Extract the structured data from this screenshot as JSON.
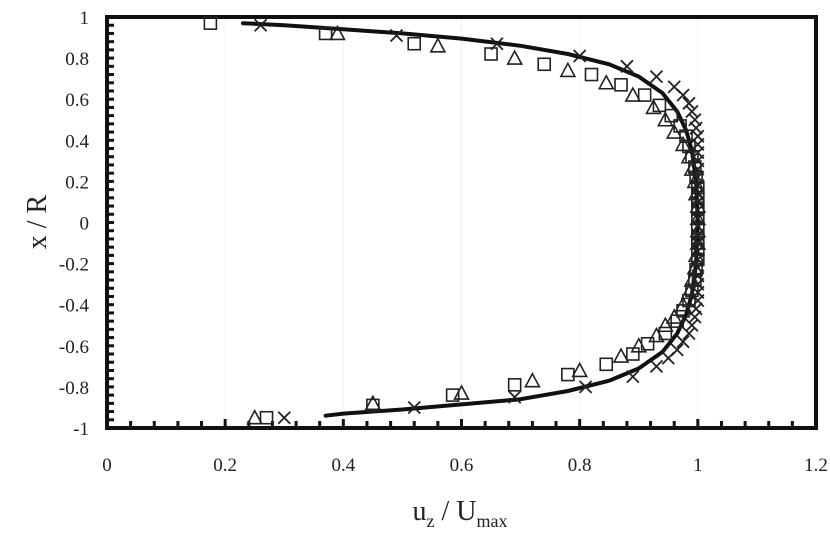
{
  "chart_data": {
    "type": "scatter",
    "title": "",
    "xlabel": "u_z / U_max",
    "xlabel_main_1": "u",
    "xlabel_sub_1": "z",
    "xlabel_main_2": " / U",
    "xlabel_sub_2": "max",
    "ylabel": "x / R",
    "xlim": [
      0,
      1.2
    ],
    "ylim": [
      -1,
      1
    ],
    "x_ticks": [
      "0",
      "0.2",
      "0.4",
      "0.6",
      "0.8",
      "1",
      "1.2"
    ],
    "y_ticks": [
      "1",
      "0.8",
      "0.6",
      "0.4",
      "0.2",
      "0",
      "-0.2",
      "-0.4",
      "-0.6",
      "-0.8",
      "-1"
    ],
    "grid": false,
    "legend": null,
    "series": [
      {
        "name": "curve",
        "style": "line",
        "color": "#111111",
        "points": [
          [
            0.23,
            0.97
          ],
          [
            0.3,
            0.96
          ],
          [
            0.4,
            0.94
          ],
          [
            0.5,
            0.92
          ],
          [
            0.6,
            0.895
          ],
          [
            0.7,
            0.86
          ],
          [
            0.78,
            0.82
          ],
          [
            0.85,
            0.77
          ],
          [
            0.9,
            0.71
          ],
          [
            0.94,
            0.63
          ],
          [
            0.965,
            0.54
          ],
          [
            0.98,
            0.45
          ],
          [
            0.99,
            0.35
          ],
          [
            0.997,
            0.2
          ],
          [
            1.0,
            0.0
          ],
          [
            0.997,
            -0.2
          ],
          [
            0.99,
            -0.35
          ],
          [
            0.98,
            -0.45
          ],
          [
            0.965,
            -0.54
          ],
          [
            0.94,
            -0.63
          ],
          [
            0.9,
            -0.71
          ],
          [
            0.85,
            -0.77
          ],
          [
            0.78,
            -0.82
          ],
          [
            0.7,
            -0.86
          ],
          [
            0.6,
            -0.885
          ],
          [
            0.5,
            -0.91
          ],
          [
            0.4,
            -0.93
          ],
          [
            0.37,
            -0.94
          ]
        ]
      },
      {
        "name": "cross",
        "style": "x",
        "color": "#222222",
        "points": [
          [
            0.26,
            0.96
          ],
          [
            0.49,
            0.91
          ],
          [
            0.66,
            0.87
          ],
          [
            0.8,
            0.81
          ],
          [
            0.88,
            0.76
          ],
          [
            0.93,
            0.71
          ],
          [
            0.96,
            0.66
          ],
          [
            0.975,
            0.62
          ],
          [
            0.985,
            0.58
          ],
          [
            0.99,
            0.54
          ],
          [
            0.995,
            0.5
          ],
          [
            0.997,
            0.46
          ],
          [
            1.0,
            0.42
          ],
          [
            1.0,
            0.38
          ],
          [
            1.0,
            0.34
          ],
          [
            1.0,
            0.3
          ],
          [
            1.0,
            0.26
          ],
          [
            1.0,
            0.22
          ],
          [
            1.0,
            0.18
          ],
          [
            1.0,
            0.14
          ],
          [
            1.0,
            0.1
          ],
          [
            1.0,
            0.06
          ],
          [
            1.0,
            0.02
          ],
          [
            1.0,
            -0.02
          ],
          [
            1.0,
            -0.06
          ],
          [
            1.0,
            -0.1
          ],
          [
            1.0,
            -0.14
          ],
          [
            1.0,
            -0.18
          ],
          [
            1.0,
            -0.22
          ],
          [
            1.0,
            -0.26
          ],
          [
            1.0,
            -0.3
          ],
          [
            1.0,
            -0.34
          ],
          [
            1.0,
            -0.38
          ],
          [
            0.997,
            -0.42
          ],
          [
            0.995,
            -0.46
          ],
          [
            0.99,
            -0.5
          ],
          [
            0.985,
            -0.54
          ],
          [
            0.975,
            -0.58
          ],
          [
            0.965,
            -0.62
          ],
          [
            0.95,
            -0.66
          ],
          [
            0.93,
            -0.7
          ],
          [
            0.89,
            -0.75
          ],
          [
            0.81,
            -0.8
          ],
          [
            0.69,
            -0.85
          ],
          [
            0.52,
            -0.9
          ],
          [
            0.3,
            -0.95
          ]
        ]
      },
      {
        "name": "square",
        "style": "square",
        "color": "#222222",
        "points": [
          [
            0.175,
            0.97
          ],
          [
            0.37,
            0.92
          ],
          [
            0.52,
            0.87
          ],
          [
            0.65,
            0.82
          ],
          [
            0.74,
            0.77
          ],
          [
            0.82,
            0.72
          ],
          [
            0.87,
            0.67
          ],
          [
            0.91,
            0.62
          ],
          [
            0.935,
            0.57
          ],
          [
            0.955,
            0.52
          ],
          [
            0.97,
            0.47
          ],
          [
            0.98,
            0.42
          ],
          [
            0.985,
            0.37
          ],
          [
            0.99,
            0.32
          ],
          [
            0.995,
            0.27
          ],
          [
            0.997,
            0.22
          ],
          [
            1.0,
            0.17
          ],
          [
            1.0,
            0.12
          ],
          [
            1.0,
            0.07
          ],
          [
            1.0,
            0.02
          ],
          [
            1.0,
            -0.03
          ],
          [
            1.0,
            -0.08
          ],
          [
            1.0,
            -0.13
          ],
          [
            1.0,
            -0.18
          ],
          [
            0.997,
            -0.23
          ],
          [
            0.995,
            -0.28
          ],
          [
            0.99,
            -0.33
          ],
          [
            0.985,
            -0.38
          ],
          [
            0.975,
            -0.43
          ],
          [
            0.965,
            -0.48
          ],
          [
            0.945,
            -0.54
          ],
          [
            0.915,
            -0.59
          ],
          [
            0.89,
            -0.64
          ],
          [
            0.845,
            -0.69
          ],
          [
            0.78,
            -0.74
          ],
          [
            0.69,
            -0.79
          ],
          [
            0.585,
            -0.84
          ],
          [
            0.45,
            -0.89
          ],
          [
            0.27,
            -0.95
          ]
        ]
      },
      {
        "name": "triangle",
        "style": "triangle",
        "color": "#222222",
        "points": [
          [
            0.39,
            0.92
          ],
          [
            0.56,
            0.86
          ],
          [
            0.69,
            0.8
          ],
          [
            0.78,
            0.74
          ],
          [
            0.845,
            0.68
          ],
          [
            0.89,
            0.62
          ],
          [
            0.925,
            0.56
          ],
          [
            0.945,
            0.5
          ],
          [
            0.96,
            0.44
          ],
          [
            0.975,
            0.38
          ],
          [
            0.985,
            0.32
          ],
          [
            0.99,
            0.26
          ],
          [
            0.995,
            0.2
          ],
          [
            0.997,
            0.14
          ],
          [
            1.0,
            0.08
          ],
          [
            1.0,
            0.02
          ],
          [
            1.0,
            -0.04
          ],
          [
            1.0,
            -0.1
          ],
          [
            0.997,
            -0.16
          ],
          [
            0.995,
            -0.22
          ],
          [
            0.99,
            -0.28
          ],
          [
            0.985,
            -0.34
          ],
          [
            0.975,
            -0.4
          ],
          [
            0.96,
            -0.46
          ],
          [
            0.945,
            -0.5
          ],
          [
            0.93,
            -0.55
          ],
          [
            0.9,
            -0.6
          ],
          [
            0.87,
            -0.65
          ],
          [
            0.8,
            -0.72
          ],
          [
            0.72,
            -0.77
          ],
          [
            0.6,
            -0.83
          ],
          [
            0.45,
            -0.88
          ],
          [
            0.25,
            -0.95
          ]
        ]
      }
    ]
  }
}
